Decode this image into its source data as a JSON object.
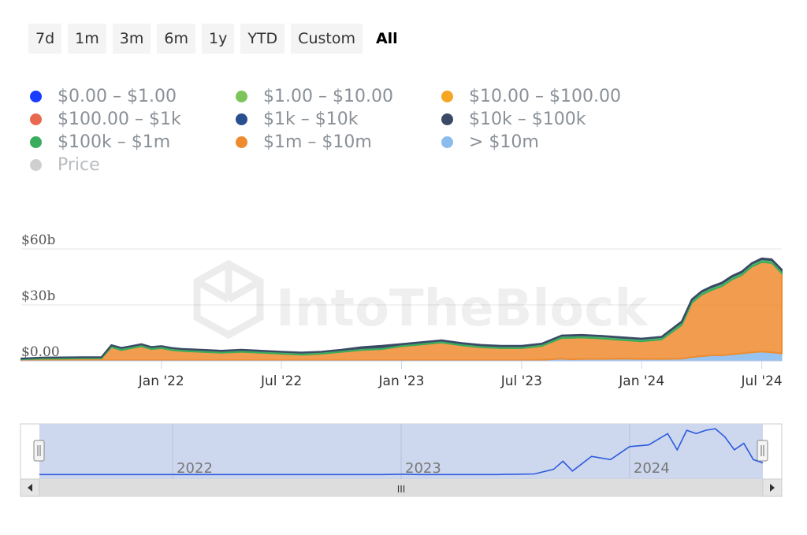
{
  "range_buttons": [
    "7d",
    "1m",
    "3m",
    "6m",
    "1y",
    "YTD",
    "Custom",
    "All"
  ],
  "active_range": "All",
  "legend": [
    {
      "label": "$0.00 – $1.00",
      "color": "#1a3cff"
    },
    {
      "label": "$1.00 – $10.00",
      "color": "#7dc55a"
    },
    {
      "label": "$10.00 – $100.00",
      "color": "#f5a623"
    },
    {
      "label": "$100.00 – $1k",
      "color": "#e8694f"
    },
    {
      "label": "$1k – $10k",
      "color": "#2a4f8f"
    },
    {
      "label": "$10k – $100k",
      "color": "#3a4a66"
    },
    {
      "label": "$100k – $1m",
      "color": "#3aad5c"
    },
    {
      "label": "$1m – $10m",
      "color": "#ee8b2f"
    },
    {
      "label": "> $10m",
      "color": "#8bbcee"
    },
    {
      "label": "Price",
      "color": "#cfcfcf"
    }
  ],
  "watermark": "IntoTheBlock",
  "navigator": {
    "years": [
      "2022",
      "2023",
      "2024"
    ],
    "scroll_grip": "III"
  },
  "chart_data": {
    "type": "area",
    "stacked": true,
    "y_ticks": [
      "$0.00",
      "$30b",
      "$60b"
    ],
    "ylim": [
      0,
      60
    ],
    "x_ticks": [
      {
        "label": "Jan '22",
        "month": 7
      },
      {
        "label": "Jul '22",
        "month": 13
      },
      {
        "label": "Jan '23",
        "month": 19
      },
      {
        "label": "Jul '23",
        "month": 25
      },
      {
        "label": "Jan '24",
        "month": 31
      },
      {
        "label": "Jul '24",
        "month": 37
      }
    ],
    "x_range_months": [
      0,
      38
    ],
    "x": [
      0,
      1,
      2,
      3,
      4,
      4.5,
      5,
      5.5,
      6,
      6.5,
      7,
      7.5,
      8,
      9,
      10,
      11,
      12,
      13,
      14,
      15,
      16,
      17,
      18,
      19,
      20,
      21,
      22,
      23,
      24,
      25,
      26,
      27,
      27.5,
      28,
      29,
      30,
      31,
      32,
      33,
      33.5,
      34,
      34.5,
      35,
      35.5,
      36,
      36.5,
      37,
      37.5,
      38
    ],
    "series": [
      {
        "name": "> $10m",
        "color": "#8bbcee",
        "values": [
          0.3,
          0.3,
          0.3,
          0.3,
          0.3,
          0.3,
          0.3,
          0.3,
          0.3,
          0.3,
          0.3,
          0.3,
          0.3,
          0.3,
          0.3,
          0.3,
          0.3,
          0.3,
          0.3,
          0.3,
          0.3,
          0.3,
          0.3,
          0.3,
          0.3,
          0.3,
          0.3,
          0.3,
          0.3,
          0.3,
          0.5,
          1.2,
          0.8,
          1.0,
          1.0,
          1.2,
          1.0,
          1.0,
          1.2,
          2.0,
          2.5,
          3.0,
          3.0,
          3.5,
          4.0,
          4.5,
          5.0,
          4.5,
          4.0
        ]
      },
      {
        "name": "$1m – $10m",
        "color": "#ee8b2f",
        "values": [
          0.5,
          0.8,
          0.9,
          1.0,
          1.0,
          7.0,
          5.5,
          6.5,
          7.5,
          6.0,
          6.5,
          5.5,
          5.0,
          4.5,
          4.0,
          4.5,
          4.0,
          3.5,
          3.0,
          3.5,
          4.5,
          5.5,
          6.0,
          7.5,
          8.5,
          9.5,
          8.0,
          7.0,
          6.5,
          6.5,
          7.5,
          11.0,
          11.5,
          11.5,
          11.0,
          10.0,
          9.5,
          10.5,
          18.0,
          29.0,
          33.0,
          35.0,
          37.0,
          40.0,
          42.0,
          46.0,
          48.0,
          48.0,
          43.0
        ]
      },
      {
        "name": "$100k – $1m",
        "color": "#3aad5c",
        "values": [
          0.4,
          0.6,
          0.6,
          0.6,
          0.6,
          1.0,
          1.0,
          1.0,
          1.0,
          1.0,
          1.0,
          1.0,
          1.0,
          1.0,
          1.0,
          1.0,
          1.0,
          1.0,
          1.0,
          1.0,
          1.0,
          1.0,
          1.0,
          1.0,
          1.0,
          1.0,
          1.0,
          1.0,
          1.0,
          1.0,
          1.0,
          1.2,
          1.2,
          1.2,
          1.2,
          1.2,
          1.2,
          1.2,
          1.5,
          1.5,
          1.5,
          1.5,
          1.5,
          1.5,
          1.5,
          1.5,
          1.5,
          1.5,
          1.5
        ]
      },
      {
        "name": "$10k – $100k",
        "color": "#3a4a66",
        "values": [
          0.1,
          0.1,
          0.1,
          0.1,
          0.1,
          0.2,
          0.2,
          0.2,
          0.2,
          0.2,
          0.2,
          0.2,
          0.2,
          0.2,
          0.2,
          0.2,
          0.2,
          0.2,
          0.2,
          0.2,
          0.2,
          0.6,
          0.8,
          0.3,
          0.3,
          0.3,
          0.3,
          0.3,
          0.3,
          0.3,
          0.3,
          0.3,
          0.3,
          0.3,
          0.3,
          0.3,
          0.3,
          0.3,
          0.5,
          0.5,
          0.5,
          0.5,
          0.5,
          0.5,
          0.5,
          0.5,
          0.5,
          0.5,
          0.5
        ]
      }
    ],
    "navigator_line": {
      "color": "#2e5bdc",
      "values": [
        0.4,
        0.4,
        0.4,
        0.4,
        0.4,
        0.4,
        0.4,
        0.4,
        0.4,
        0.4,
        0.4,
        0.4,
        0.4,
        0.4,
        0.4,
        0.4,
        0.4,
        0.4,
        0.4,
        0.4,
        0.4,
        0.4,
        0.4,
        0.5,
        0.4,
        0.4,
        0.4,
        0.4,
        0.4,
        0.5,
        0.6,
        2.0,
        4.5,
        1.5,
        6.0,
        5.0,
        9.0,
        9.5,
        13.0,
        8.0,
        14.0,
        13.0,
        14.0,
        14.5,
        12.0,
        8.0,
        10.0,
        5.0,
        4.0
      ],
      "ylim": [
        0,
        15
      ]
    }
  }
}
